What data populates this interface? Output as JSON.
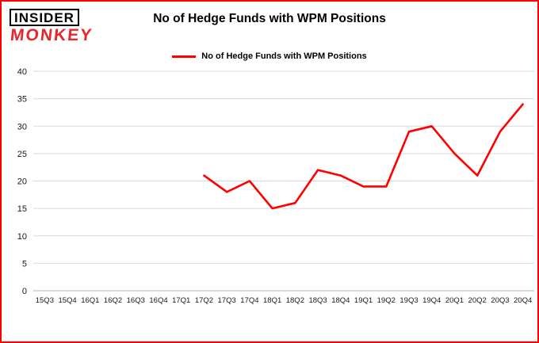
{
  "header": {
    "logo_line1": "INSIDER",
    "logo_line2": "MONKEY",
    "title": "No of Hedge Funds with WPM Positions"
  },
  "legend": {
    "label": "No of Hedge Funds with WPM Positions",
    "color": "#fe0000"
  },
  "chart_data": {
    "type": "line",
    "title": "No of Hedge Funds with WPM Positions",
    "xlabel": "",
    "ylabel": "",
    "ylim": [
      0,
      40
    ],
    "ytick_step": 5,
    "grid": true,
    "legend_position": "top",
    "categories": [
      "15Q3",
      "15Q4",
      "16Q1",
      "16Q2",
      "16Q3",
      "16Q4",
      "17Q1",
      "17Q2",
      "17Q3",
      "17Q4",
      "18Q1",
      "18Q2",
      "18Q3",
      "18Q4",
      "19Q1",
      "19Q2",
      "19Q3",
      "19Q4",
      "20Q1",
      "20Q2",
      "20Q3",
      "20Q4"
    ],
    "series": [
      {
        "name": "No of Hedge Funds with WPM Positions",
        "color": "#fe0000",
        "values": [
          null,
          null,
          null,
          null,
          null,
          null,
          null,
          21,
          18,
          20,
          15,
          16,
          22,
          21,
          19,
          19,
          29,
          30,
          25,
          21,
          29,
          34
        ]
      }
    ]
  },
  "colors": {
    "frame_border": "#fe0000",
    "grid_line": "#d9d9d9",
    "axis_line": "#b3b3b3",
    "tick_label": "#1a1a1a",
    "logo_red": "#e8262d"
  }
}
